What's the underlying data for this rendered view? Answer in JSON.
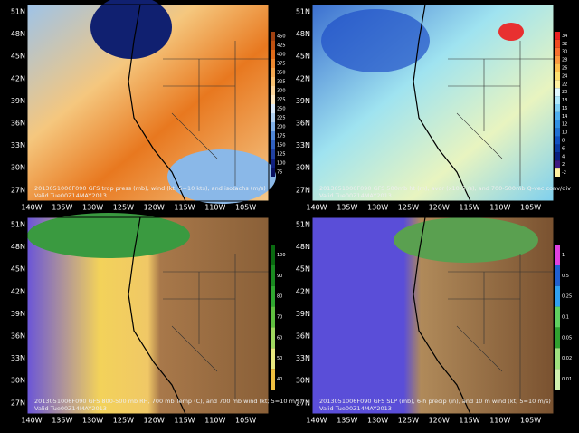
{
  "panels": [
    {
      "caption": "2013051006F090 GFS trop press (mb), wind (kt; 5=10 kts), and isotachs (m/s)",
      "valid": "Valid Tue00Z14MAY2013",
      "colorbar": [
        "450",
        "425",
        "400",
        "375",
        "350",
        "325",
        "300",
        "275",
        "250",
        "225",
        "200",
        "175",
        "150",
        "125",
        "100",
        "75"
      ]
    },
    {
      "caption": "2013051006F090 GFS 500mb ht (m), avor (x10-5 /s), and 700-500mb Q-vec conv/div",
      "valid": "Valid Tue00Z14MAY2013",
      "colorbar": [
        "34",
        "32",
        "30",
        "28",
        "26",
        "24",
        "22",
        "20",
        "18",
        "16",
        "14",
        "12",
        "10",
        "8",
        "6",
        "4",
        "2",
        "-2"
      ]
    },
    {
      "caption": "2013051006F090 GFS 800-500 mb RH, 700 mb Temp (C), and 700 mb wind (kt; 5=10 m/s)",
      "valid": "Valid Tue00Z14MAY2013",
      "colorbar": [
        "100",
        "90",
        "80",
        "70",
        "60",
        "50",
        "40"
      ]
    },
    {
      "caption": "2013051006F090 GFS SLP (mb), 6-h precip (in), and 10 m wind (kt; 5=10 m/s)",
      "valid": "Valid Tue00Z14MAY2013",
      "colorbar": [
        "1",
        "0.5",
        "0.25",
        "0.1",
        "0.05",
        "0.02",
        "0.01"
      ]
    }
  ],
  "lat_labels": [
    "51N",
    "48N",
    "45N",
    "42N",
    "39N",
    "36N",
    "33N",
    "30N",
    "27N"
  ],
  "lon_labels": [
    "140W",
    "135W",
    "130W",
    "125W",
    "120W",
    "115W",
    "110W",
    "105W"
  ]
}
